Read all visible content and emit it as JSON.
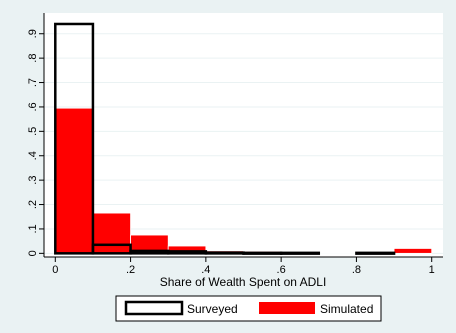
{
  "chart_data": {
    "type": "bar",
    "xlabel": "Share of Wealth Spent on ADLI",
    "ylabel": "",
    "xlim": [
      -0.03,
      1.03
    ],
    "ylim": [
      -0.015,
      0.985
    ],
    "x_ticks": [
      0,
      0.2,
      0.4,
      0.6,
      0.8,
      1
    ],
    "x_tick_labels": [
      "0",
      ".2",
      ".4",
      ".6",
      ".8",
      "1"
    ],
    "y_ticks": [
      0,
      0.1,
      0.2,
      0.3,
      0.4,
      0.5,
      0.6,
      0.7,
      0.8,
      0.9
    ],
    "y_tick_labels": [
      "0",
      ".1",
      ".2",
      ".3",
      ".4",
      ".5",
      ".6",
      ".7",
      ".8",
      ".9"
    ],
    "grid": true,
    "legend_position": "bottom",
    "series": [
      {
        "name": "Surveyed",
        "style": "outline",
        "color": "#000000",
        "bins": [
          {
            "x0": 0.0,
            "x1": 0.1,
            "value": 0.94
          },
          {
            "x0": 0.1,
            "x1": 0.2,
            "value": 0.035
          },
          {
            "x0": 0.2,
            "x1": 0.3,
            "value": 0.01
          },
          {
            "x0": 0.3,
            "x1": 0.4,
            "value": 0.008
          },
          {
            "x0": 0.4,
            "x1": 0.5,
            "value": 0.003
          },
          {
            "x0": 0.5,
            "x1": 0.6,
            "value": 0.002
          },
          {
            "x0": 0.6,
            "x1": 0.7,
            "value": 0.002
          },
          {
            "x0": 0.8,
            "x1": 0.9,
            "value": 0.002
          }
        ]
      },
      {
        "name": "Simulated",
        "style": "filled",
        "color": "#ff0000",
        "bins": [
          {
            "x0": 0.0,
            "x1": 0.1,
            "value": 0.595
          },
          {
            "x0": 0.1,
            "x1": 0.2,
            "value": 0.165
          },
          {
            "x0": 0.2,
            "x1": 0.3,
            "value": 0.075
          },
          {
            "x0": 0.3,
            "x1": 0.4,
            "value": 0.03
          },
          {
            "x0": 0.4,
            "x1": 0.5,
            "value": 0.01
          },
          {
            "x0": 0.5,
            "x1": 0.6,
            "value": 0.008
          },
          {
            "x0": 0.6,
            "x1": 0.7,
            "value": 0.005
          },
          {
            "x0": 0.7,
            "x1": 0.8,
            "value": 0.002
          },
          {
            "x0": 0.8,
            "x1": 0.9,
            "value": 0.002
          },
          {
            "x0": 0.9,
            "x1": 1.0,
            "value": 0.02
          }
        ]
      }
    ]
  }
}
